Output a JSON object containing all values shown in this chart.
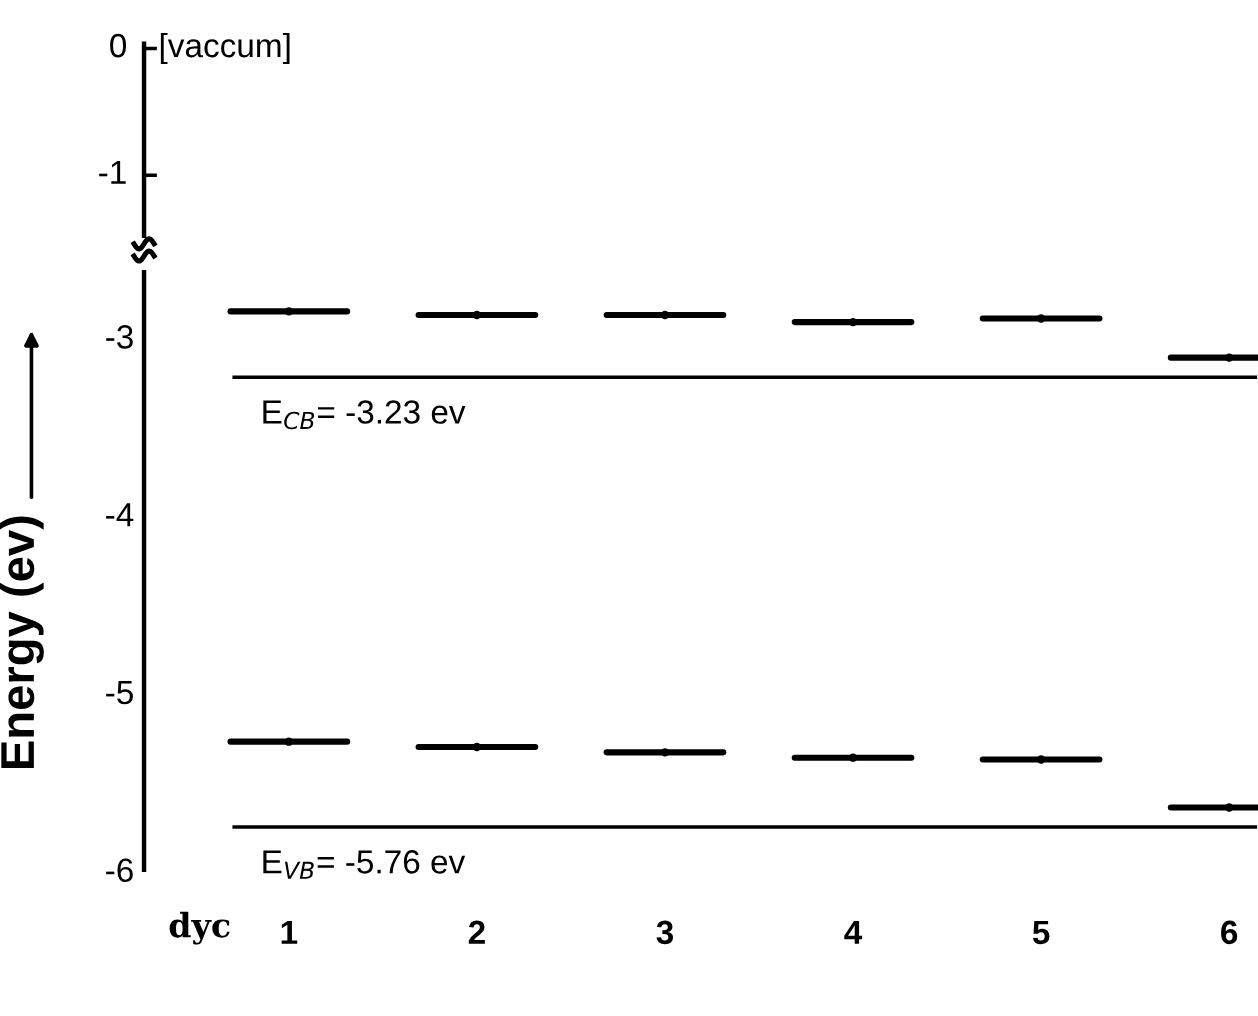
{
  "chart_data": [
    {
      "type": "other",
      "annotations": [
        "0",
        "-1",
        "[vaccum]"
      ]
    },
    {
      "type": "scatter",
      "categories": [
        "1",
        "2",
        "3",
        "4",
        "5",
        "6"
      ],
      "xlabel": "dyc",
      "ylabel": "Energy (ev)",
      "ylim": [
        -6,
        -2.64
      ],
      "yticks": [
        -3,
        -4,
        -5,
        -6
      ],
      "grid": false,
      "legend": false,
      "series": [
        {
          "color": "#000000",
          "values": [
            -2.86,
            -2.88,
            -2.88,
            -2.92,
            -2.9,
            -3.12
          ]
        },
        {
          "color": "#000000",
          "values": [
            -5.28,
            -5.31,
            -5.34,
            -5.37,
            -5.38,
            -5.65
          ]
        }
      ],
      "ref_lines": [
        {
          "axis": "y",
          "value": -3.23,
          "label": "E$_{CB}$= -3.23 ev",
          "color": "#000000"
        },
        {
          "axis": "y",
          "value": -5.76,
          "label": "E$_{VB}$= -5.76 ev",
          "color": "#000000"
        }
      ]
    }
  ]
}
